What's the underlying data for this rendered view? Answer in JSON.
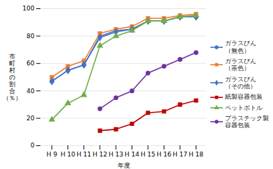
{
  "chart_data": {
    "type": "line",
    "categories": [
      "H 9",
      "H 10",
      "H 11",
      "H 12",
      "H 13",
      "H 14",
      "H 15",
      "H 16",
      "H 17",
      "H 18"
    ],
    "series": [
      {
        "name": "ガラスびん\n（無色）",
        "color": "#4472c4",
        "marker": "circle",
        "values": [
          47,
          55,
          59,
          80,
          84,
          85,
          91,
          91,
          94,
          94
        ]
      },
      {
        "name": "ガラスびん\n（茶色）",
        "color": "#ed7d31",
        "marker": "square",
        "values": [
          50,
          58,
          62,
          82,
          85,
          87,
          93,
          93,
          95,
          96
        ]
      },
      {
        "name": "ガラスびん\n（その他）",
        "color": "#4472c4",
        "marker": "diamond",
        "values": [
          47,
          55,
          59,
          79,
          83,
          85,
          91,
          91,
          94,
          94
        ]
      },
      {
        "name": "紙製容器包装",
        "color": "#c00000",
        "marker": "square",
        "values": [
          null,
          null,
          null,
          11,
          12,
          16,
          24,
          25,
          30,
          33
        ]
      },
      {
        "name": "ペットボトル",
        "color": "#70ad47",
        "marker": "triangle",
        "values": [
          19,
          31,
          37,
          73,
          80,
          84,
          91,
          91,
          94,
          95
        ]
      },
      {
        "name": "プラスチック製\n容器包装",
        "color": "#7030a0",
        "marker": "circle",
        "values": [
          null,
          null,
          null,
          27,
          35,
          40,
          53,
          58,
          63,
          68
        ]
      }
    ],
    "xlabel": "年度",
    "ylabel": "市\n町\n村\nの\n割\n合\n（％）",
    "ylim": [
      0,
      100
    ],
    "yticks": [
      0,
      20,
      40,
      60,
      80,
      100
    ],
    "grid": true,
    "legend": "right"
  }
}
